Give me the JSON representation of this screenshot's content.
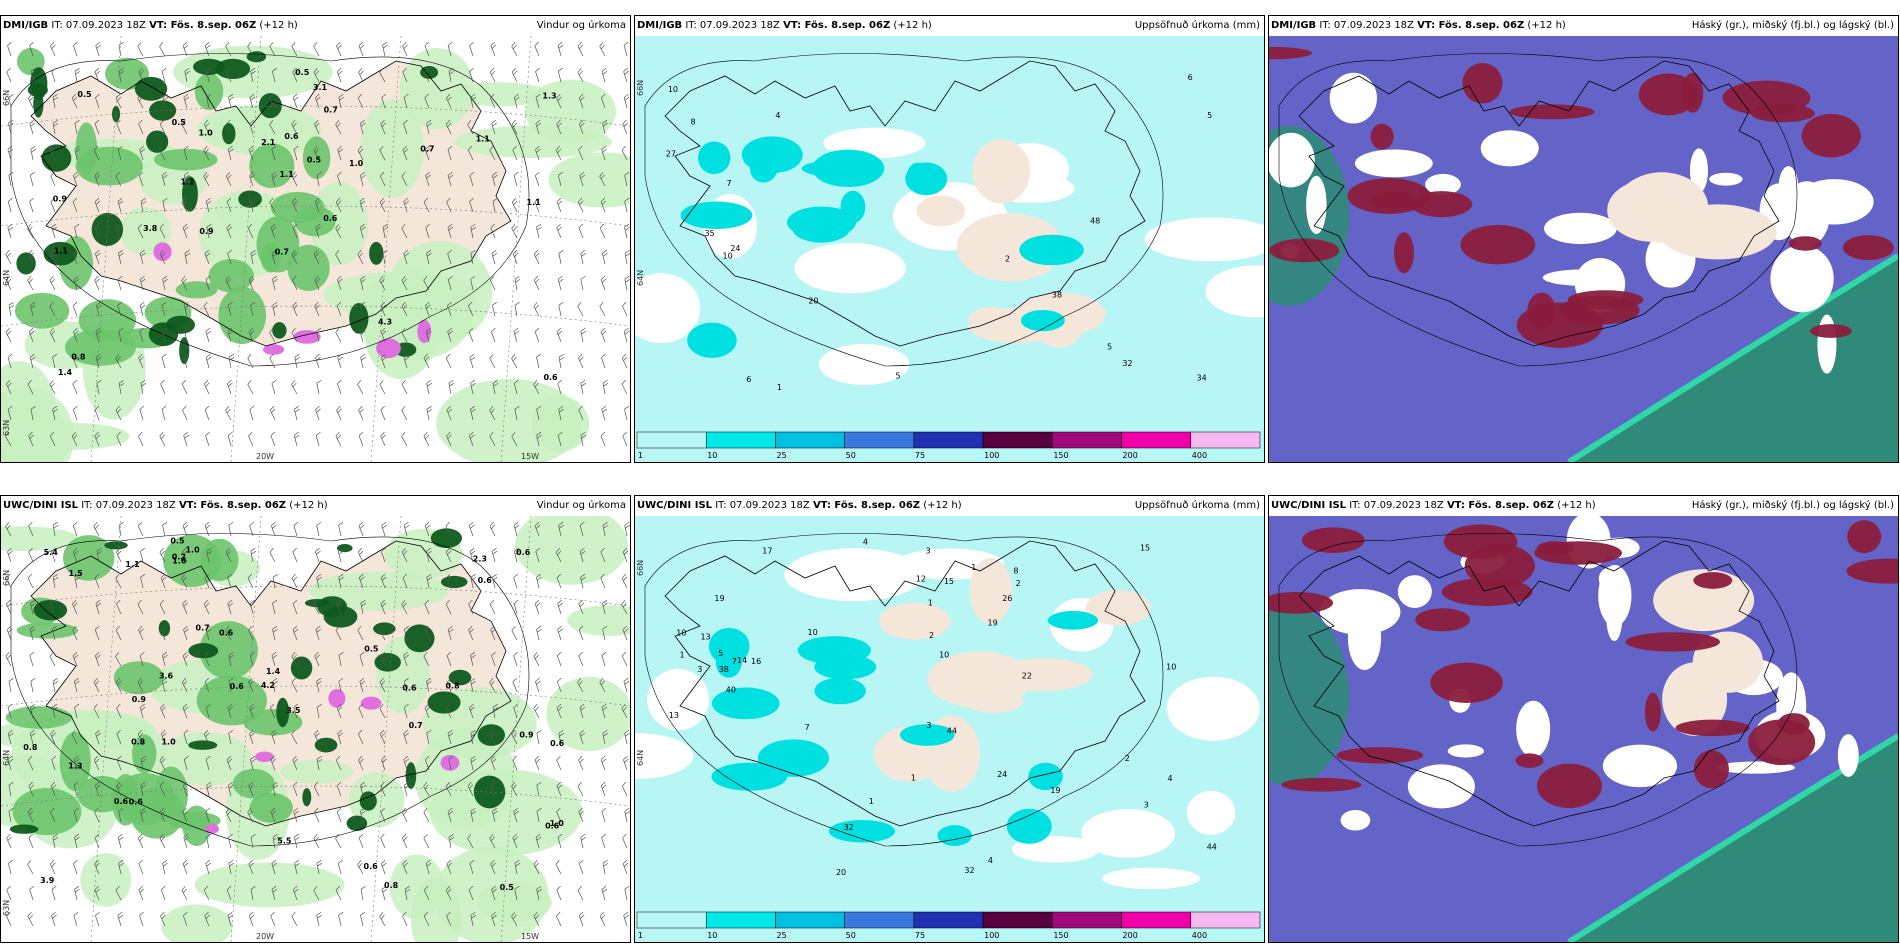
{
  "panels": [
    {
      "id": "p1",
      "model": "DMI/IGB",
      "it": "IT: 07.09.2023 18Z",
      "vt": "VT: Fös. 8.sep. 06Z",
      "lead": "(+12 h)",
      "product": "Vindur og úrkoma",
      "kind": "wind",
      "values": [
        "3.8",
        "3.1",
        "1.0",
        "1.1",
        "0.5",
        "0.6",
        "0.7",
        "0.7",
        "0.6",
        "0.9",
        "1.1",
        "0.6",
        "2.1",
        "0.8",
        "1.1",
        "1.1",
        "1.3",
        "4.3",
        "1.1",
        "0.9",
        "0.7",
        "0.5",
        "1.0",
        "0.5",
        "0.5",
        "1.4"
      ],
      "lon_labels": [
        "20W",
        "15W"
      ],
      "lat_labels": [
        "66N",
        "64N",
        "63N"
      ]
    },
    {
      "id": "p2",
      "model": "DMI/IGB",
      "it": "IT: 07.09.2023 18Z",
      "vt": "VT: Fös. 8.sep. 06Z",
      "lead": "(+12 h)",
      "product": "Uppsöfnuð úrkoma (mm)",
      "kind": "precip",
      "values": [
        "10",
        "10",
        "5",
        "5",
        "2",
        "5",
        "6",
        "1",
        "8",
        "27",
        "24",
        "35",
        "34",
        "38",
        "4",
        "7",
        "20",
        "48",
        "32",
        "6"
      ],
      "lat_labels": [
        "66N",
        "64N"
      ]
    },
    {
      "id": "p3",
      "model": "DMI/IGB",
      "it": "IT: 07.09.2023 18Z",
      "vt": "VT: Fös. 8.sep. 06Z",
      "lead": "(+12 h)",
      "product": "Háský (gr.), miðský (fj.bl.) og lágský (bl.)",
      "kind": "cloud"
    },
    {
      "id": "p4",
      "model": "UWC/DINI ISL",
      "it": "IT: 07.09.2023 18Z",
      "vt": "VT: Fös. 8.sep. 06Z",
      "lead": "(+12 h)",
      "product": "Vindur og úrkoma",
      "kind": "wind",
      "values": [
        "3.9",
        "4.2",
        "0.6",
        "5.4",
        "3.6",
        "0.6",
        "0.6",
        "1.0",
        "0.6",
        "0.7",
        "0.5",
        "1.0",
        "0.8",
        "0.7",
        "0.9",
        "1.3",
        "0.8",
        "1.1",
        "0.5",
        "0.9",
        "3.5",
        "0.6",
        "1.0",
        "1.5",
        "1.6",
        "0.2",
        "0.6",
        "0.8",
        "5.5",
        "0.5",
        "0.6",
        "0.6",
        "0.8",
        "0.6",
        "2.3",
        "1.4",
        "0.6"
      ],
      "lon_labels": [
        "20W",
        "15W"
      ],
      "lat_labels": [
        "66N",
        "64N",
        "63N"
      ]
    },
    {
      "id": "p5",
      "model": "UWC/DINI ISL",
      "it": "IT: 07.09.2023 18Z",
      "vt": "VT: Fös. 8.sep. 06Z",
      "lead": "(+12 h)",
      "product": "Uppsöfnuð úrkoma (mm)",
      "kind": "precip",
      "values": [
        "12",
        "10",
        "10",
        "3",
        "4",
        "2",
        "1",
        "1",
        "10",
        "7",
        "19",
        "24",
        "15",
        "13",
        "3",
        "2",
        "5",
        "1",
        "44",
        "17",
        "15",
        "3",
        "4",
        "1",
        "8",
        "22",
        "20",
        "26",
        "19",
        "10",
        "14",
        "13",
        "44",
        "32",
        "38",
        "19",
        "16",
        "7",
        "40",
        "32",
        "3",
        "4",
        "1",
        "2"
      ],
      "lat_labels": [
        "66N",
        "64N"
      ]
    },
    {
      "id": "p6",
      "model": "UWC/DINI ISL",
      "it": "IT: 07.09.2023 18Z",
      "vt": "VT: Fös. 8.sep. 06Z",
      "lead": "(+12 h)",
      "product": "Háský (gr.), miðský (fj.bl.) og lágský (bl.)",
      "kind": "cloud"
    }
  ],
  "colorbar": {
    "ticks": [
      "1",
      "10",
      "25",
      "50",
      "75",
      "100",
      "150",
      "200",
      "400"
    ],
    "colors": [
      "#b8f5f5",
      "#00e8e8",
      "#00c0e0",
      "#3a78e0",
      "#2030b0",
      "#5a0040",
      "#a0087a",
      "#f000a8",
      "#f5b8f0"
    ]
  },
  "colors": {
    "land": "#f5e6da",
    "wind_light": "#c8f0c0",
    "wind_mid": "#6cc46c",
    "wind_dark": "#0e5a1e",
    "magenta": "#e070e0",
    "precip_bg": "#b8f5f5",
    "precip_mid": "#00e0e0",
    "cloud_high": "#6464c8",
    "cloud_mid": "#8a1e3c",
    "cloud_low": "#2f8a7a",
    "cloud_band": "#30d8a8"
  }
}
